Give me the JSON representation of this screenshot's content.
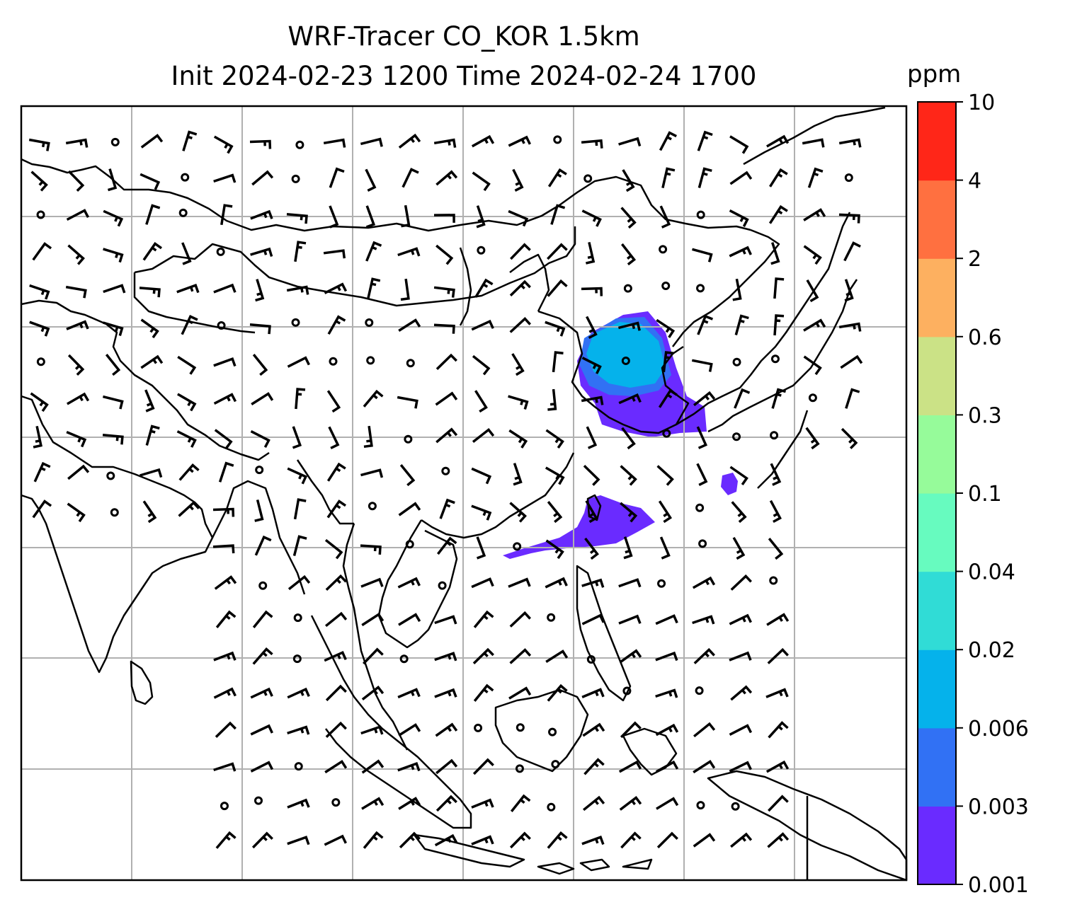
{
  "title": {
    "line1": "WRF-Tracer CO_KOR 1.5km",
    "line2": "Init 2024-02-23 1200 Time 2024-02-24 1700"
  },
  "colorbar": {
    "unit": "ppm",
    "levels": [
      "0.001",
      "0.003",
      "0.006",
      "0.02",
      "0.04",
      "0.1",
      "0.3",
      "0.6",
      "2",
      "4",
      "10"
    ],
    "colors": [
      "#6a2bff",
      "#3171f4",
      "#05b2eb",
      "#30dcd6",
      "#67fbbf",
      "#96fb9a",
      "#cbe286",
      "#fdb060",
      "#ff7040",
      "#ff2618"
    ]
  },
  "map": {
    "gridlines": true,
    "features": [
      "coastlines",
      "country-borders",
      "wind-barbs",
      "tracer-plume"
    ],
    "plume_colors": {
      "low": "#6a2bff",
      "mid": "#3171f4",
      "high": "#05b2eb"
    }
  }
}
